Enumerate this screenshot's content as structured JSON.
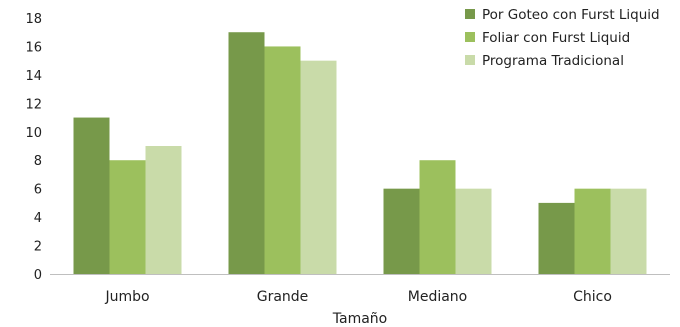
{
  "chart_data": {
    "type": "bar",
    "title": "",
    "xlabel": "Tamaño",
    "ylabel": "",
    "ylim": [
      0,
      18
    ],
    "yticks": [
      0,
      2,
      4,
      6,
      8,
      10,
      12,
      14,
      16,
      18
    ],
    "categories": [
      "Jumbo",
      "Grande",
      "Mediano",
      "Chico"
    ],
    "series": [
      {
        "name": "Por Goteo con Furst Liquid",
        "values": [
          11,
          17,
          6,
          5
        ],
        "color": "#77994a"
      },
      {
        "name": "Foliar con Furst Liquid",
        "values": [
          8,
          16,
          8,
          6
        ],
        "color": "#9cc05d"
      },
      {
        "name": "Programa Tradicional",
        "values": [
          9,
          15,
          6,
          6
        ],
        "color": "#c9dba9"
      }
    ],
    "grid": false,
    "legend_position": "top-right"
  }
}
